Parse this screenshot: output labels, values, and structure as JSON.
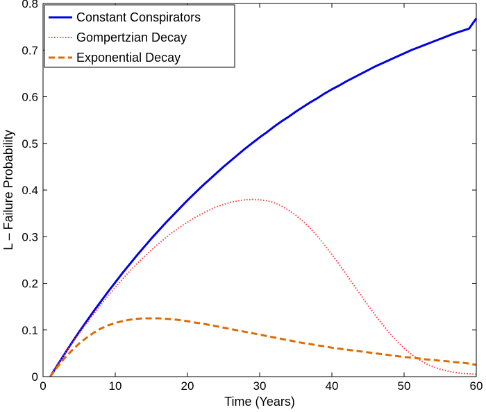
{
  "chart_data": {
    "type": "line",
    "title": "",
    "xlabel": "Time (Years)",
    "ylabel": "L – Failure Probability",
    "xlim": [
      0,
      60
    ],
    "ylim": [
      0,
      0.8
    ],
    "xticks": [
      0,
      10,
      20,
      30,
      40,
      50,
      60
    ],
    "yticks": [
      0,
      0.1,
      0.2,
      0.3,
      0.4,
      0.5,
      0.6,
      0.7,
      0.8
    ],
    "xtick_labels": [
      "0",
      "10",
      "20",
      "30",
      "40",
      "50",
      "60"
    ],
    "ytick_labels": [
      "0",
      "0.1",
      "0.2",
      "0.3",
      "0.4",
      "0.5",
      "0.6",
      "0.7",
      "0.8"
    ],
    "grid": false,
    "legend_position": "top-left",
    "x": [
      1,
      2,
      3,
      4,
      5,
      6,
      7,
      8,
      9,
      10,
      11,
      12,
      13,
      14,
      15,
      16,
      17,
      18,
      19,
      20,
      21,
      22,
      23,
      24,
      25,
      26,
      27,
      28,
      29,
      30,
      31,
      32,
      33,
      34,
      35,
      36,
      37,
      38,
      39,
      40,
      41,
      42,
      43,
      44,
      45,
      46,
      47,
      48,
      49,
      50,
      51,
      52,
      53,
      54,
      55,
      56,
      57,
      58,
      59,
      60
    ],
    "series": [
      {
        "name": "Constant Conspirators",
        "color": "#0000e6",
        "style": "solid",
        "values": [
          0.0,
          0.025,
          0.049,
          0.073,
          0.096,
          0.118,
          0.14,
          0.161,
          0.182,
          0.202,
          0.222,
          0.241,
          0.26,
          0.278,
          0.296,
          0.313,
          0.33,
          0.346,
          0.362,
          0.378,
          0.393,
          0.408,
          0.422,
          0.436,
          0.45,
          0.463,
          0.476,
          0.489,
          0.501,
          0.513,
          0.524,
          0.536,
          0.547,
          0.557,
          0.568,
          0.578,
          0.588,
          0.597,
          0.607,
          0.616,
          0.624,
          0.633,
          0.641,
          0.649,
          0.657,
          0.665,
          0.672,
          0.679,
          0.686,
          0.693,
          0.7,
          0.706,
          0.712,
          0.718,
          0.724,
          0.73,
          0.736,
          0.741,
          0.746,
          0.768
        ]
      },
      {
        "name": "Gompertzian Decay",
        "color": "#ff3333",
        "style": "dotted",
        "values": [
          0.0,
          0.025,
          0.048,
          0.071,
          0.093,
          0.114,
          0.134,
          0.154,
          0.173,
          0.191,
          0.209,
          0.226,
          0.242,
          0.257,
          0.271,
          0.285,
          0.298,
          0.31,
          0.321,
          0.331,
          0.341,
          0.349,
          0.357,
          0.364,
          0.369,
          0.374,
          0.377,
          0.379,
          0.38,
          0.379,
          0.377,
          0.373,
          0.366,
          0.357,
          0.346,
          0.333,
          0.318,
          0.301,
          0.282,
          0.262,
          0.241,
          0.219,
          0.197,
          0.175,
          0.153,
          0.132,
          0.112,
          0.093,
          0.076,
          0.061,
          0.048,
          0.037,
          0.028,
          0.021,
          0.016,
          0.012,
          0.009,
          0.007,
          0.006,
          0.005
        ]
      },
      {
        "name": "Exponential Decay",
        "color": "#e06a00",
        "style": "dashed",
        "values": [
          0.0,
          0.021,
          0.04,
          0.056,
          0.071,
          0.083,
          0.094,
          0.103,
          0.11,
          0.115,
          0.119,
          0.122,
          0.124,
          0.125,
          0.125,
          0.125,
          0.124,
          0.123,
          0.121,
          0.119,
          0.116,
          0.114,
          0.111,
          0.108,
          0.105,
          0.102,
          0.099,
          0.096,
          0.093,
          0.09,
          0.087,
          0.084,
          0.081,
          0.078,
          0.075,
          0.072,
          0.07,
          0.067,
          0.065,
          0.062,
          0.06,
          0.058,
          0.056,
          0.054,
          0.052,
          0.05,
          0.048,
          0.046,
          0.044,
          0.042,
          0.041,
          0.039,
          0.037,
          0.036,
          0.034,
          0.033,
          0.031,
          0.03,
          0.028,
          0.025
        ]
      }
    ]
  }
}
